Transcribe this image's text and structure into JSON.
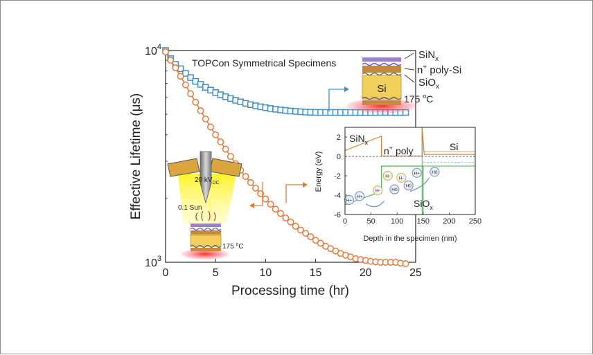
{
  "chart_data": [
    {
      "type": "line",
      "title": "TOPCon Symmetrical Specimens",
      "xlabel": "Processing time (hr)",
      "ylabel": "Effective Lifetime (μs)",
      "xlim": [
        0,
        25
      ],
      "ylim": [
        1000,
        10000
      ],
      "yscale": "log",
      "xticks": [
        "0",
        "5",
        "10",
        "15",
        "20",
        "25"
      ],
      "yticks": [
        {
          "base": "10",
          "exp": "4"
        },
        {
          "base": "10",
          "exp": "3"
        }
      ],
      "series": [
        {
          "color": "#3a8fc4",
          "marker": "square",
          "x": [
            0,
            0.5,
            1,
            1.5,
            2,
            2.5,
            3,
            3.5,
            4,
            4.5,
            5,
            5.5,
            6,
            6.5,
            7,
            7.5,
            8,
            8.5,
            9,
            9.5,
            10,
            10.5,
            11,
            11.5,
            12,
            12.5,
            13,
            13.5,
            14,
            14.5,
            15,
            15.5,
            16,
            16.5,
            17,
            17.5,
            18,
            18.5,
            19,
            19.5,
            20,
            20.5,
            21,
            21.5,
            22,
            22.5,
            23,
            23.5,
            24
          ],
          "y": [
            10000,
            9150,
            8600,
            8200,
            7800,
            7450,
            7150,
            6920,
            6700,
            6500,
            6330,
            6180,
            6050,
            5930,
            5820,
            5720,
            5630,
            5550,
            5480,
            5420,
            5370,
            5320,
            5280,
            5240,
            5210,
            5180,
            5160,
            5140,
            5120,
            5110,
            5100,
            5100,
            5100,
            5100,
            5100,
            5100,
            5100,
            5100,
            5100,
            5100,
            5100,
            5100,
            5100,
            5100,
            5100,
            5100,
            5100,
            5100,
            5100
          ]
        },
        {
          "color": "#e27a3b",
          "marker": "circle",
          "x": [
            0,
            0.5,
            1,
            1.5,
            2,
            2.5,
            3,
            3.5,
            4,
            4.5,
            5,
            5.5,
            6,
            6.5,
            7,
            7.5,
            8,
            8.5,
            9,
            9.5,
            10,
            10.5,
            11,
            11.5,
            12,
            12.5,
            13,
            13.5,
            14,
            14.5,
            15,
            15.5,
            16,
            16.5,
            17,
            17.5,
            18,
            18.5,
            19,
            19.5,
            20,
            20.5,
            21,
            21.5,
            22,
            22.5,
            23,
            23.5,
            24
          ],
          "y": [
            9850,
            9000,
            8280,
            7550,
            6880,
            6250,
            5700,
            5200,
            4750,
            4350,
            4000,
            3700,
            3420,
            3160,
            2920,
            2720,
            2540,
            2380,
            2240,
            2110,
            1990,
            1880,
            1780,
            1700,
            1620,
            1550,
            1480,
            1420,
            1370,
            1320,
            1270,
            1230,
            1190,
            1160,
            1130,
            1100,
            1080,
            1060,
            1040,
            1030,
            1020,
            1010,
            1005,
            1000,
            1000,
            1000,
            1000,
            990,
            985
          ]
        }
      ],
      "annotations": {
        "stack_labels": [
          {
            "main": "SiN",
            "sub": "x"
          },
          {
            "sup": "n",
            "supx": "+",
            "main": " poly-Si"
          },
          {
            "main": "SiO",
            "sub": "x"
          }
        ],
        "si_label": "Si",
        "temp": {
          "value": "175 ",
          "unit": "o",
          "tail": "C"
        },
        "bias": {
          "main": "20 kV",
          "sub": "DC"
        },
        "illumination": "0.1 Sun"
      }
    },
    {
      "type": "line",
      "xlabel": "Depth in the specimen (nm)",
      "ylabel": "Energy (eV)",
      "xlim": [
        0,
        250
      ],
      "ylim": [
        -6,
        3
      ],
      "xticks": [
        "0",
        "50",
        "100",
        "150",
        "200",
        "250"
      ],
      "yticks": [
        "2",
        "0",
        "-2",
        "-4",
        "-6"
      ],
      "region_labels": {
        "sinx": {
          "main": "SiN",
          "sub": "x"
        },
        "npoly": {
          "sup": "+",
          "pre": "n",
          "post": " poly"
        },
        "si": "Si",
        "siox": {
          "main": "SiO",
          "sub": "x"
        }
      },
      "ions": [
        "H+",
        "H+",
        "H-",
        "H-",
        "H0",
        "H-",
        "H0",
        "H+",
        "H0"
      ]
    }
  ]
}
